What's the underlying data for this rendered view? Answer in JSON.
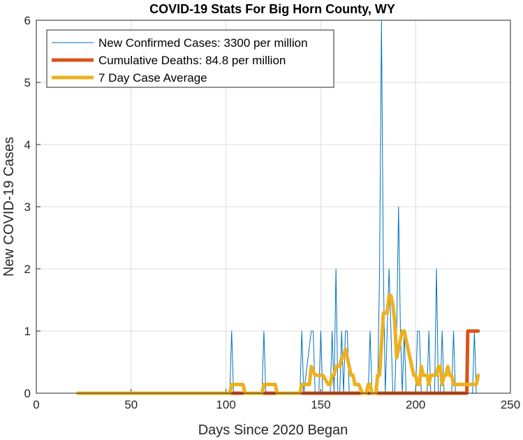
{
  "chart_data": {
    "type": "line",
    "title": "COVID-19 Stats For Big Horn County, WY",
    "xlabel": "Days Since 2020 Began",
    "ylabel": "New COVID-19 Cases",
    "xlim": [
      0,
      250
    ],
    "ylim": [
      0,
      6
    ],
    "xticks": [
      "0",
      "50",
      "100",
      "150",
      "200",
      "250"
    ],
    "yticks": [
      "0",
      "1",
      "2",
      "3",
      "4",
      "5",
      "6"
    ],
    "grid": true,
    "legend_position": "top-left",
    "series": [
      {
        "name": "New Confirmed Cases: 3300 per million",
        "color": "#0072BD",
        "style": "thin",
        "x": [
          22,
          102,
          103,
          104,
          119,
          120,
          121,
          139,
          140,
          141,
          145,
          146,
          147,
          149,
          150,
          151,
          155,
          156,
          157,
          158,
          159,
          160,
          161,
          162,
          163,
          164,
          165,
          166,
          175,
          176,
          177,
          180,
          181,
          182,
          183,
          184,
          185,
          186,
          187,
          188,
          189,
          190,
          191,
          192,
          193,
          194,
          195,
          196,
          197,
          198,
          199,
          200,
          201,
          202,
          203,
          204,
          205,
          206,
          207,
          208,
          209,
          210,
          211,
          212,
          213,
          214,
          215,
          216,
          217,
          218,
          219,
          220,
          221,
          222,
          223,
          224,
          225,
          226,
          227,
          228,
          229,
          230,
          231,
          232,
          233
        ],
        "y": [
          0,
          0,
          1,
          0,
          0,
          1,
          0,
          0,
          1,
          0,
          1,
          1,
          0,
          0,
          1,
          0,
          0,
          1,
          0,
          2,
          0,
          0,
          1,
          0,
          1,
          1,
          0,
          0,
          0,
          1,
          0,
          0,
          2,
          6,
          2,
          0,
          1,
          2,
          1,
          0,
          0,
          1,
          3,
          1,
          0,
          1,
          0,
          0,
          0,
          0,
          0,
          0,
          1,
          1,
          0,
          0,
          0,
          0,
          1,
          0,
          0,
          0,
          2,
          0,
          0,
          1,
          0,
          0,
          0,
          0,
          0,
          1,
          0,
          0,
          0,
          0,
          0,
          0,
          0,
          0,
          0,
          0,
          1,
          0,
          0
        ]
      },
      {
        "name": "Cumulative Deaths: 84.8 per million",
        "color": "#D95319",
        "style": "thick",
        "x": [
          22,
          227,
          227.5,
          233
        ],
        "y": [
          0,
          0,
          1,
          1
        ]
      },
      {
        "name": "7 Day Case Average",
        "color": "#EDB120",
        "style": "thick",
        "x": [
          22,
          102,
          103,
          109,
          110,
          119,
          120,
          126,
          127,
          139,
          140,
          144,
          145,
          147,
          148,
          150,
          151,
          154,
          155,
          156,
          157,
          158,
          159,
          160,
          161,
          162,
          163,
          164,
          165,
          166,
          167,
          168,
          169,
          170,
          172,
          174,
          175,
          176,
          177,
          179,
          180,
          181,
          183,
          184,
          185,
          186,
          187,
          188,
          189,
          190,
          191,
          192,
          193,
          194,
          195,
          196,
          197,
          198,
          199,
          200,
          201,
          202,
          203,
          204,
          205,
          206,
          207,
          208,
          209,
          210,
          211,
          212,
          213,
          214,
          215,
          216,
          217,
          218,
          219,
          220,
          221,
          222,
          223,
          224,
          225,
          226,
          227,
          228,
          229,
          230,
          231,
          232,
          233
        ],
        "y": [
          0,
          0,
          0.14,
          0.14,
          0,
          0,
          0.14,
          0.14,
          0,
          0,
          0.14,
          0.14,
          0.43,
          0.29,
          0.29,
          0.29,
          0.29,
          0.14,
          0.14,
          0.29,
          0.29,
          0.43,
          0.43,
          0.43,
          0.57,
          0.57,
          0.71,
          0.57,
          0.43,
          0.29,
          0.29,
          0.14,
          0.14,
          0.14,
          0,
          0,
          0.14,
          0.14,
          0,
          0,
          0.29,
          0.29,
          1.29,
          1.29,
          1.29,
          1.57,
          1.57,
          1.43,
          1.14,
          0.57,
          0.71,
          0.86,
          1,
          1,
          0.86,
          0.71,
          0.57,
          0.43,
          0.29,
          0.29,
          0.14,
          0.14,
          0.43,
          0.29,
          0.29,
          0.29,
          0.14,
          0.29,
          0.29,
          0.29,
          0.29,
          0.43,
          0.43,
          0.14,
          0.29,
          0.29,
          0.43,
          0.29,
          0.29,
          0.14,
          0.14,
          0.14,
          0.14,
          0.14,
          0.14,
          0.14,
          0.14,
          0.14,
          0.14,
          0.14,
          0.14,
          0.14,
          0.29
        ]
      }
    ]
  }
}
